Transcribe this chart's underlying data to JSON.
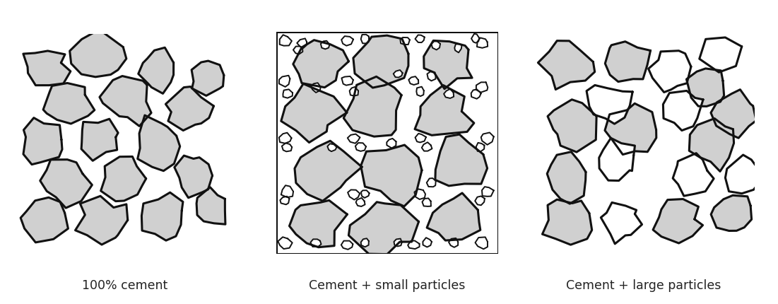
{
  "fig_width": 11.01,
  "fig_height": 4.3,
  "dpi": 100,
  "background_color": "#ffffff",
  "particle_fill": "#d0d0d0",
  "particle_edge": "#111111",
  "edge_lw": 2.2,
  "small_lw": 1.4,
  "labels": [
    "100% cement",
    "Cement + small particles",
    "Cement + large particles"
  ],
  "label_fontsize": 12.5
}
